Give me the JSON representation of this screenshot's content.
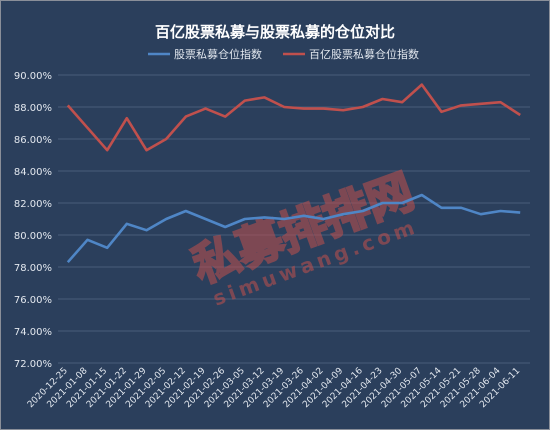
{
  "chart_data": {
    "type": "line",
    "title": "百亿股票私募与股票私募的仓位对比",
    "legend_position": "top-center",
    "grid": true,
    "ylim": [
      72,
      90
    ],
    "y_ticks": [
      "72.00%",
      "74.00%",
      "76.00%",
      "78.00%",
      "80.00%",
      "82.00%",
      "84.00%",
      "86.00%",
      "88.00%",
      "90.00%"
    ],
    "x": [
      "2020-12-25",
      "2021-01-08",
      "2021-01-15",
      "2021-01-22",
      "2021-01-29",
      "2021-02-05",
      "2021-02-12",
      "2021-02-19",
      "2021-02-26",
      "2021-03-05",
      "2021-03-12",
      "2021-03-19",
      "2021-03-26",
      "2021-04-02",
      "2021-04-09",
      "2021-04-16",
      "2021-04-23",
      "2021-04-30",
      "2021-05-07",
      "2021-05-14",
      "2021-05-21",
      "2021-05-28",
      "2021-06-04",
      "2021-06-11"
    ],
    "series": [
      {
        "name": "股票私募仓位指数",
        "color": "#4f86c6",
        "values": [
          78.3,
          79.7,
          79.2,
          80.7,
          80.3,
          81.0,
          81.5,
          81.0,
          80.5,
          81.0,
          81.1,
          81.0,
          81.2,
          81.0,
          81.3,
          81.5,
          82.0,
          82.0,
          82.5,
          81.7,
          81.7,
          81.3,
          81.5,
          81.4
        ]
      },
      {
        "name": "百亿股票私募仓位指数",
        "color": "#c0504d",
        "values": [
          88.1,
          86.7,
          85.3,
          87.3,
          85.3,
          86.0,
          87.4,
          87.9,
          87.4,
          88.4,
          88.6,
          88.0,
          87.9,
          87.9,
          87.8,
          88.0,
          88.5,
          88.3,
          89.4,
          87.7,
          88.1,
          88.2,
          88.3,
          87.5
        ]
      }
    ]
  },
  "watermark": {
    "text_cn": "私募排排网",
    "text_en": "simuwang.com"
  }
}
